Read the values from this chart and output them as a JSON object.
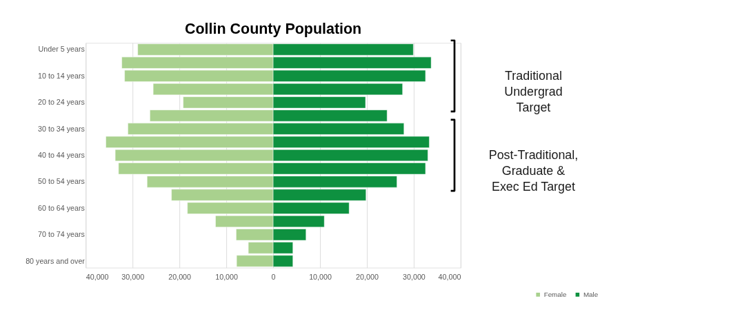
{
  "chart_data": {
    "type": "bar",
    "orientation": "horizontal",
    "stacked": true,
    "title": "Collin County Population",
    "categories": [
      "Under 5 years",
      null,
      "10 to 14 years",
      null,
      "20 to 24 years",
      null,
      "30 to 34 years",
      null,
      "40 to 44 years",
      null,
      "50 to 54 years",
      null,
      "60 to 64 years",
      null,
      "70 to 74 years",
      null,
      "80 years and over"
    ],
    "series": [
      {
        "name": "Female",
        "color": "#a9d18e",
        "values": [
          -28900,
          -32300,
          -31700,
          -25600,
          -19200,
          -26300,
          -31000,
          -35700,
          -33700,
          -33000,
          -26900,
          -21700,
          -18300,
          -12300,
          -7900,
          -5300,
          -7800
        ]
      },
      {
        "name": "Male",
        "color": "#0e9140",
        "values": [
          29900,
          33700,
          32500,
          27600,
          19700,
          24300,
          27900,
          33300,
          33000,
          32500,
          26400,
          19800,
          16200,
          10900,
          7000,
          4200,
          4200
        ]
      }
    ],
    "xlim": [
      -40000,
      40000
    ],
    "xticks": [
      {
        "value": -40000,
        "label": "40,000"
      },
      {
        "value": -30000,
        "label": "30,000"
      },
      {
        "value": -20000,
        "label": "20,000"
      },
      {
        "value": -10000,
        "label": "10,000"
      },
      0,
      {
        "value": 10000,
        "label": "10,000"
      },
      {
        "value": 20000,
        "label": "20,000"
      },
      {
        "value": 30000,
        "label": "30,000"
      },
      {
        "value": 40000,
        "label": "40,000"
      }
    ],
    "grid": "x",
    "legend": "bottom right",
    "annotations": [
      "Traditional\nUndergrad\nTarget",
      "Post-Traditional,\nGraduate  &\nExec Ed Target"
    ]
  }
}
